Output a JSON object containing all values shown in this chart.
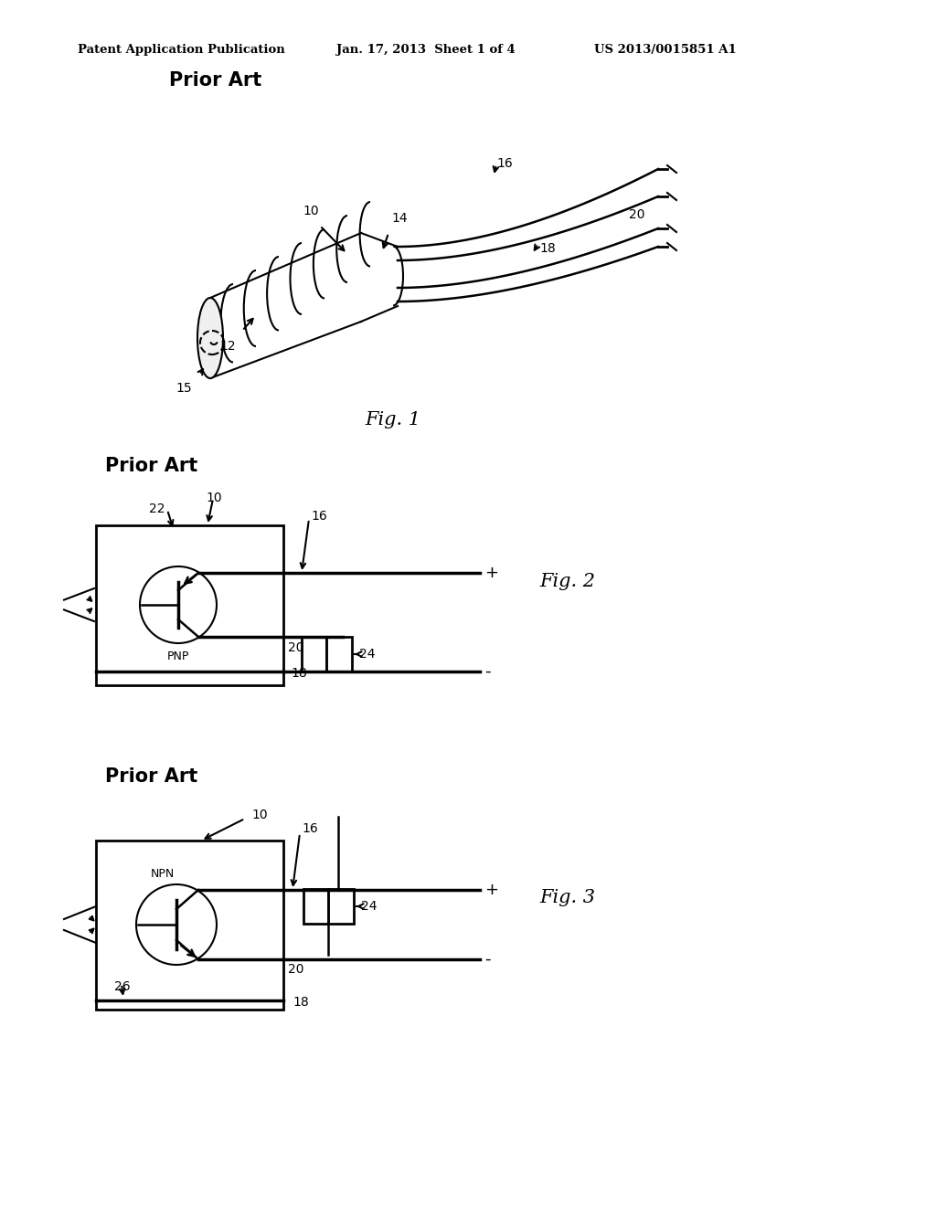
{
  "bg_color": "#ffffff",
  "header_text": "Patent Application Publication",
  "header_date": "Jan. 17, 2013  Sheet 1 of 4",
  "header_patent": "US 2013/0015851 A1",
  "fig1_label": "Fig. 1",
  "fig2_label": "Fig. 2",
  "fig3_label": "Fig. 3",
  "prior_art_label": "Prior Art",
  "line_color": "#000000",
  "lw": 1.5,
  "tlw": 2.5
}
